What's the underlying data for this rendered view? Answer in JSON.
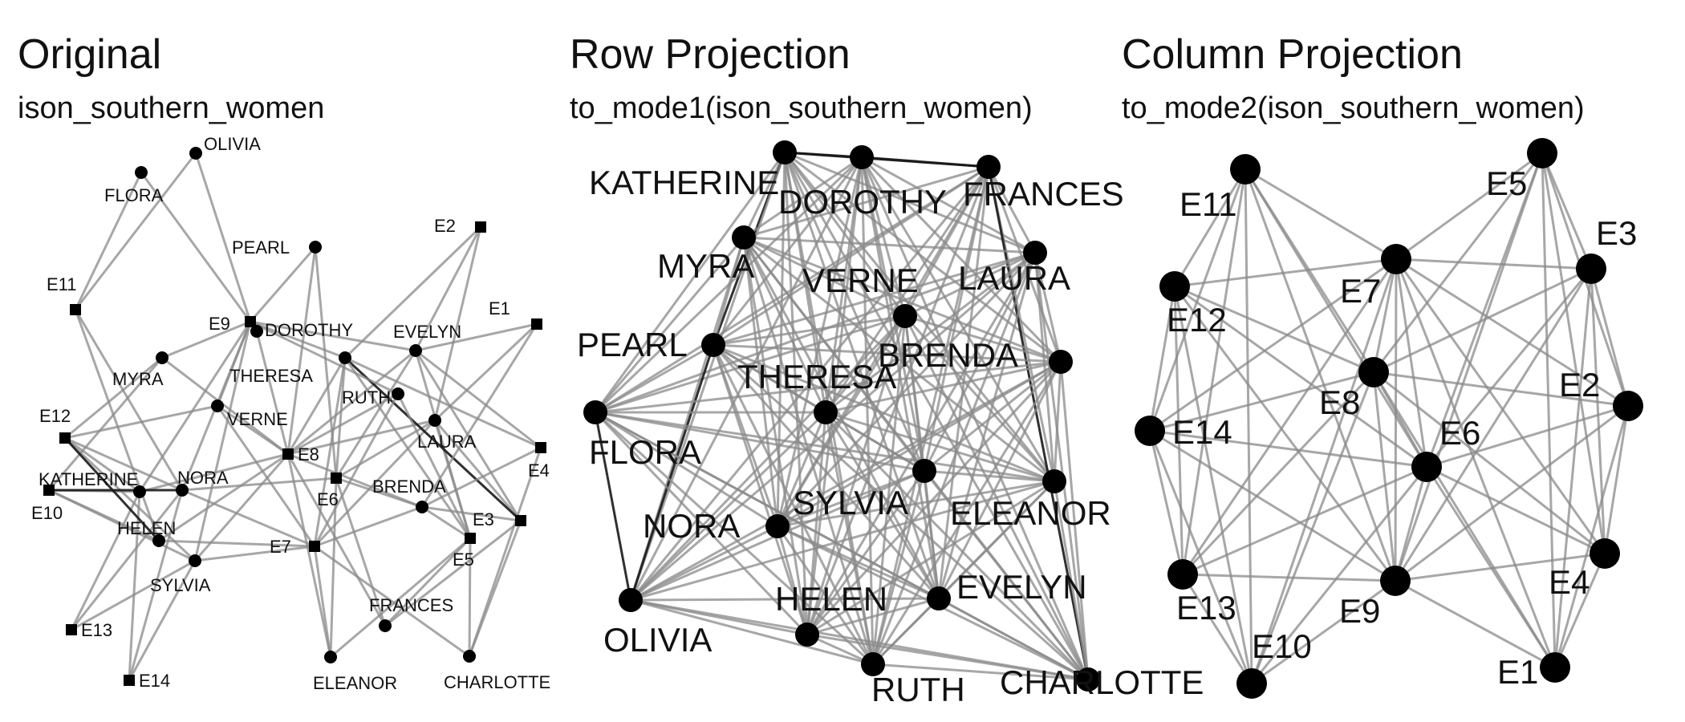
{
  "panels": [
    {
      "title": "Original",
      "subtitle": "ison_southern_women",
      "nodes": [
        {
          "id": "OLIVIA",
          "label": "OLIVIA",
          "shape": "circle"
        },
        {
          "id": "FLORA",
          "label": "FLORA",
          "shape": "circle"
        },
        {
          "id": "PEARL",
          "label": "PEARL",
          "shape": "circle"
        },
        {
          "id": "DOROTHY",
          "label": "DOROTHY",
          "shape": "circle"
        },
        {
          "id": "MYRA",
          "label": "MYRA",
          "shape": "circle"
        },
        {
          "id": "THERESA",
          "label": "THERESA",
          "shape": "circle"
        },
        {
          "id": "RUTH",
          "label": "RUTH",
          "shape": "circle"
        },
        {
          "id": "VERNE",
          "label": "VERNE",
          "shape": "circle"
        },
        {
          "id": "EVELYN",
          "label": "EVELYN",
          "shape": "circle"
        },
        {
          "id": "LAURA",
          "label": "LAURA",
          "shape": "circle"
        },
        {
          "id": "KATHERINE",
          "label": "KATHERINE",
          "shape": "circle"
        },
        {
          "id": "NORA",
          "label": "NORA",
          "shape": "circle"
        },
        {
          "id": "HELEN",
          "label": "HELEN",
          "shape": "circle"
        },
        {
          "id": "SYLVIA",
          "label": "SYLVIA",
          "shape": "circle"
        },
        {
          "id": "BRENDA",
          "label": "BRENDA",
          "shape": "circle"
        },
        {
          "id": "FRANCES",
          "label": "FRANCES",
          "shape": "circle"
        },
        {
          "id": "ELEANOR",
          "label": "ELEANOR",
          "shape": "circle"
        },
        {
          "id": "CHARLOTTE",
          "label": "CHARLOTTE",
          "shape": "circle"
        },
        {
          "id": "E1",
          "label": "E1",
          "shape": "square"
        },
        {
          "id": "E2",
          "label": "E2",
          "shape": "square"
        },
        {
          "id": "E3",
          "label": "E3",
          "shape": "square"
        },
        {
          "id": "E4",
          "label": "E4",
          "shape": "square"
        },
        {
          "id": "E5",
          "label": "E5",
          "shape": "square"
        },
        {
          "id": "E6",
          "label": "E6",
          "shape": "square"
        },
        {
          "id": "E7",
          "label": "E7",
          "shape": "square"
        },
        {
          "id": "E8",
          "label": "E8",
          "shape": "square"
        },
        {
          "id": "E9",
          "label": "E9",
          "shape": "square"
        },
        {
          "id": "E10",
          "label": "E10",
          "shape": "square"
        },
        {
          "id": "E11",
          "label": "E11",
          "shape": "square"
        },
        {
          "id": "E12",
          "label": "E12",
          "shape": "square"
        },
        {
          "id": "E13",
          "label": "E13",
          "shape": "square"
        },
        {
          "id": "E14",
          "label": "E14",
          "shape": "square"
        }
      ],
      "edges": [
        [
          "EVELYN",
          "E1"
        ],
        [
          "EVELYN",
          "E2"
        ],
        [
          "EVELYN",
          "E3"
        ],
        [
          "EVELYN",
          "E4"
        ],
        [
          "EVELYN",
          "E5"
        ],
        [
          "EVELYN",
          "E6"
        ],
        [
          "EVELYN",
          "E8"
        ],
        [
          "EVELYN",
          "E9"
        ],
        [
          "LAURA",
          "E1"
        ],
        [
          "LAURA",
          "E2"
        ],
        [
          "LAURA",
          "E3"
        ],
        [
          "LAURA",
          "E5"
        ],
        [
          "LAURA",
          "E6"
        ],
        [
          "LAURA",
          "E7"
        ],
        [
          "LAURA",
          "E8"
        ],
        [
          "THERESA",
          "E2"
        ],
        [
          "THERESA",
          "E3"
        ],
        [
          "THERESA",
          "E4"
        ],
        [
          "THERESA",
          "E5"
        ],
        [
          "THERESA",
          "E6"
        ],
        [
          "THERESA",
          "E7"
        ],
        [
          "THERESA",
          "E8"
        ],
        [
          "THERESA",
          "E9"
        ],
        [
          "BRENDA",
          "E1"
        ],
        [
          "BRENDA",
          "E3"
        ],
        [
          "BRENDA",
          "E4"
        ],
        [
          "BRENDA",
          "E5"
        ],
        [
          "BRENDA",
          "E6"
        ],
        [
          "BRENDA",
          "E7"
        ],
        [
          "BRENDA",
          "E8"
        ],
        [
          "CHARLOTTE",
          "E3"
        ],
        [
          "CHARLOTTE",
          "E4"
        ],
        [
          "CHARLOTTE",
          "E5"
        ],
        [
          "CHARLOTTE",
          "E7"
        ],
        [
          "FRANCES",
          "E3"
        ],
        [
          "FRANCES",
          "E5"
        ],
        [
          "FRANCES",
          "E6"
        ],
        [
          "FRANCES",
          "E8"
        ],
        [
          "ELEANOR",
          "E5"
        ],
        [
          "ELEANOR",
          "E6"
        ],
        [
          "ELEANOR",
          "E7"
        ],
        [
          "ELEANOR",
          "E8"
        ],
        [
          "PEARL",
          "E6"
        ],
        [
          "PEARL",
          "E8"
        ],
        [
          "PEARL",
          "E9"
        ],
        [
          "RUTH",
          "E5"
        ],
        [
          "RUTH",
          "E7"
        ],
        [
          "RUTH",
          "E8"
        ],
        [
          "RUTH",
          "E9"
        ],
        [
          "VERNE",
          "E7"
        ],
        [
          "VERNE",
          "E8"
        ],
        [
          "VERNE",
          "E9"
        ],
        [
          "VERNE",
          "E12"
        ],
        [
          "MYRA",
          "E8"
        ],
        [
          "MYRA",
          "E9"
        ],
        [
          "MYRA",
          "E10"
        ],
        [
          "MYRA",
          "E12"
        ],
        [
          "KATHERINE",
          "E8"
        ],
        [
          "KATHERINE",
          "E9"
        ],
        [
          "KATHERINE",
          "E10"
        ],
        [
          "KATHERINE",
          "E12"
        ],
        [
          "KATHERINE",
          "E13"
        ],
        [
          "KATHERINE",
          "E14"
        ],
        [
          "SYLVIA",
          "E7"
        ],
        [
          "SYLVIA",
          "E8"
        ],
        [
          "SYLVIA",
          "E9"
        ],
        [
          "SYLVIA",
          "E10"
        ],
        [
          "SYLVIA",
          "E12"
        ],
        [
          "SYLVIA",
          "E13"
        ],
        [
          "SYLVIA",
          "E14"
        ],
        [
          "NORA",
          "E6"
        ],
        [
          "NORA",
          "E7"
        ],
        [
          "NORA",
          "E9"
        ],
        [
          "NORA",
          "E10"
        ],
        [
          "NORA",
          "E11"
        ],
        [
          "NORA",
          "E12"
        ],
        [
          "NORA",
          "E13"
        ],
        [
          "NORA",
          "E14"
        ],
        [
          "HELEN",
          "E7"
        ],
        [
          "HELEN",
          "E8"
        ],
        [
          "HELEN",
          "E10"
        ],
        [
          "HELEN",
          "E11"
        ],
        [
          "HELEN",
          "E12"
        ],
        [
          "DOROTHY",
          "E8"
        ],
        [
          "DOROTHY",
          "E9"
        ],
        [
          "OLIVIA",
          "E9"
        ],
        [
          "OLIVIA",
          "E11"
        ],
        [
          "FLORA",
          "E9"
        ],
        [
          "FLORA",
          "E11"
        ]
      ]
    },
    {
      "title": "Row Projection",
      "subtitle": "to_mode1(ison_southern_women)",
      "nodes": [
        {
          "id": "KATHERINE",
          "label": "KATHERINE",
          "shape": "circle"
        },
        {
          "id": "DOROTHY",
          "label": "DOROTHY",
          "shape": "circle"
        },
        {
          "id": "FRANCES",
          "label": "FRANCES",
          "shape": "circle"
        },
        {
          "id": "MYRA",
          "label": "MYRA",
          "shape": "circle"
        },
        {
          "id": "VERNE",
          "label": "VERNE",
          "shape": "circle"
        },
        {
          "id": "LAURA",
          "label": "LAURA",
          "shape": "circle"
        },
        {
          "id": "PEARL",
          "label": "PEARL",
          "shape": "circle"
        },
        {
          "id": "BRENDA",
          "label": "BRENDA",
          "shape": "circle"
        },
        {
          "id": "THERESA",
          "label": "THERESA",
          "shape": "circle"
        },
        {
          "id": "FLORA",
          "label": "FLORA",
          "shape": "circle"
        },
        {
          "id": "SYLVIA",
          "label": "SYLVIA",
          "shape": "circle"
        },
        {
          "id": "NORA",
          "label": "NORA",
          "shape": "circle"
        },
        {
          "id": "ELEANOR",
          "label": "ELEANOR",
          "shape": "circle"
        },
        {
          "id": "EVELYN",
          "label": "EVELYN",
          "shape": "circle"
        },
        {
          "id": "OLIVIA",
          "label": "OLIVIA",
          "shape": "circle"
        },
        {
          "id": "HELEN",
          "label": "HELEN",
          "shape": "circle"
        },
        {
          "id": "RUTH",
          "label": "RUTH",
          "shape": "circle"
        },
        {
          "id": "CHARLOTTE",
          "label": "CHARLOTTE",
          "shape": "circle"
        }
      ],
      "edges": "complete"
    },
    {
      "title": "Column Projection",
      "subtitle": "to_mode2(ison_southern_women)",
      "nodes": [
        {
          "id": "E11",
          "label": "E11",
          "shape": "circle"
        },
        {
          "id": "E5",
          "label": "E5",
          "shape": "circle"
        },
        {
          "id": "E3",
          "label": "E3",
          "shape": "circle"
        },
        {
          "id": "E7",
          "label": "E7",
          "shape": "circle"
        },
        {
          "id": "E12",
          "label": "E12",
          "shape": "circle"
        },
        {
          "id": "E8",
          "label": "E8",
          "shape": "circle"
        },
        {
          "id": "E2",
          "label": "E2",
          "shape": "circle"
        },
        {
          "id": "E14",
          "label": "E14",
          "shape": "circle"
        },
        {
          "id": "E6",
          "label": "E6",
          "shape": "circle"
        },
        {
          "id": "E4",
          "label": "E4",
          "shape": "circle"
        },
        {
          "id": "E13",
          "label": "E13",
          "shape": "circle"
        },
        {
          "id": "E9",
          "label": "E9",
          "shape": "circle"
        },
        {
          "id": "E10",
          "label": "E10",
          "shape": "circle"
        },
        {
          "id": "E1",
          "label": "E1",
          "shape": "circle"
        }
      ],
      "edges": [
        [
          "E11",
          "E7"
        ],
        [
          "E11",
          "E8"
        ],
        [
          "E11",
          "E6"
        ],
        [
          "E11",
          "E9"
        ],
        [
          "E11",
          "E10"
        ],
        [
          "E11",
          "E12"
        ],
        [
          "E11",
          "E13"
        ],
        [
          "E11",
          "E14"
        ],
        [
          "E5",
          "E7"
        ],
        [
          "E5",
          "E8"
        ],
        [
          "E5",
          "E6"
        ],
        [
          "E5",
          "E9"
        ],
        [
          "E5",
          "E1"
        ],
        [
          "E5",
          "E2"
        ],
        [
          "E5",
          "E3"
        ],
        [
          "E5",
          "E4"
        ],
        [
          "E3",
          "E7"
        ],
        [
          "E3",
          "E8"
        ],
        [
          "E3",
          "E6"
        ],
        [
          "E3",
          "E9"
        ],
        [
          "E3",
          "E1"
        ],
        [
          "E3",
          "E2"
        ],
        [
          "E3",
          "E4"
        ],
        [
          "E7",
          "E12"
        ],
        [
          "E7",
          "E8"
        ],
        [
          "E7",
          "E6"
        ],
        [
          "E7",
          "E9"
        ],
        [
          "E7",
          "E13"
        ],
        [
          "E7",
          "E14"
        ],
        [
          "E7",
          "E10"
        ],
        [
          "E7",
          "E2"
        ],
        [
          "E7",
          "E4"
        ],
        [
          "E7",
          "E1"
        ],
        [
          "E12",
          "E8"
        ],
        [
          "E12",
          "E6"
        ],
        [
          "E12",
          "E9"
        ],
        [
          "E12",
          "E14"
        ],
        [
          "E12",
          "E13"
        ],
        [
          "E12",
          "E10"
        ],
        [
          "E8",
          "E6"
        ],
        [
          "E8",
          "E9"
        ],
        [
          "E8",
          "E2"
        ],
        [
          "E8",
          "E14"
        ],
        [
          "E8",
          "E13"
        ],
        [
          "E8",
          "E10"
        ],
        [
          "E8",
          "E4"
        ],
        [
          "E8",
          "E1"
        ],
        [
          "E2",
          "E6"
        ],
        [
          "E2",
          "E9"
        ],
        [
          "E2",
          "E4"
        ],
        [
          "E2",
          "E1"
        ],
        [
          "E14",
          "E6"
        ],
        [
          "E14",
          "E9"
        ],
        [
          "E14",
          "E13"
        ],
        [
          "E14",
          "E10"
        ],
        [
          "E6",
          "E9"
        ],
        [
          "E6",
          "E13"
        ],
        [
          "E6",
          "E10"
        ],
        [
          "E6",
          "E4"
        ],
        [
          "E6",
          "E1"
        ],
        [
          "E4",
          "E9"
        ],
        [
          "E4",
          "E1"
        ],
        [
          "E13",
          "E9"
        ],
        [
          "E13",
          "E10"
        ],
        [
          "E9",
          "E10"
        ],
        [
          "E9",
          "E1"
        ]
      ]
    }
  ]
}
